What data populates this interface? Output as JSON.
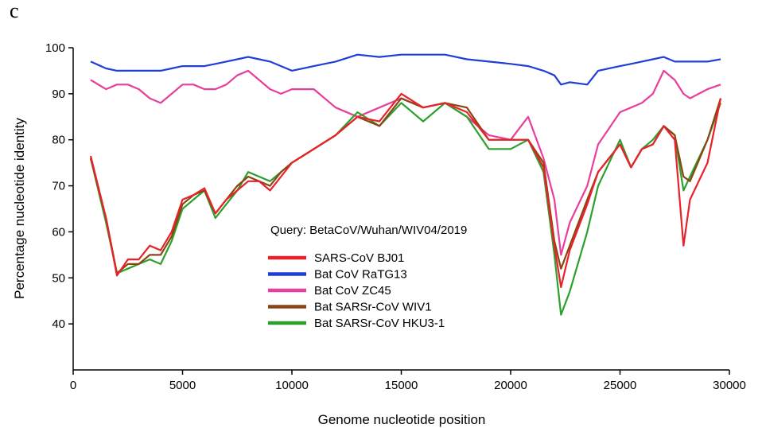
{
  "panel_label": "c",
  "chart_data": {
    "type": "line",
    "annotation": "Query: BetaCoV/Wuhan/WIV04/2019",
    "x_label": "Genome nucleotide position",
    "y_label": "Percentage nucleotide identity",
    "xlim": [
      0,
      30000
    ],
    "xticks": [
      0,
      5000,
      10000,
      15000,
      20000,
      25000,
      30000
    ],
    "ylim": [
      30,
      100
    ],
    "yticks": [
      40,
      50,
      60,
      70,
      80,
      90,
      100
    ],
    "x": [
      800,
      1500,
      2000,
      2500,
      3000,
      3500,
      4000,
      4500,
      5000,
      5500,
      6000,
      6500,
      7000,
      7500,
      8000,
      8500,
      9000,
      9500,
      10000,
      11000,
      12000,
      13000,
      14000,
      15000,
      16000,
      17000,
      18000,
      19000,
      20000,
      20800,
      21500,
      22000,
      22300,
      22700,
      23500,
      24000,
      25000,
      25500,
      26000,
      26500,
      27000,
      27500,
      27900,
      28200,
      29000,
      29600
    ],
    "series": [
      {
        "name": "SARS-CoV BJ01",
        "color": "#e8212b",
        "values": [
          76.5,
          63,
          50.5,
          54,
          54,
          57,
          56,
          60,
          67,
          68,
          69.5,
          64,
          67,
          69,
          71,
          71,
          69,
          72,
          75,
          78,
          81,
          85,
          84,
          90,
          87,
          88,
          86,
          80,
          80,
          80,
          74,
          57,
          48,
          56,
          66,
          73,
          79,
          74,
          78,
          79,
          83,
          80,
          57,
          67,
          75,
          89
        ]
      },
      {
        "name": "Bat CoV RaTG13",
        "color": "#1f3fd6",
        "values": [
          97,
          95.5,
          95,
          95,
          95,
          95,
          95,
          95.5,
          96,
          96,
          96,
          96.5,
          97,
          97.5,
          98,
          97.5,
          97,
          96,
          95,
          96,
          97,
          98.5,
          98,
          98.5,
          98.5,
          98.5,
          97.5,
          97,
          96.5,
          96,
          95,
          94,
          92,
          92.5,
          92,
          95,
          96,
          96.5,
          97,
          97.5,
          98,
          97,
          97,
          97,
          97,
          97.5
        ]
      },
      {
        "name": "Bat CoV ZC45",
        "color": "#e83e9c",
        "values": [
          93,
          91,
          92,
          92,
          91,
          89,
          88,
          90,
          92,
          92,
          91,
          91,
          92,
          94,
          95,
          93,
          91,
          90,
          91,
          91,
          87,
          85,
          87,
          89,
          87,
          88,
          85,
          81,
          80,
          85,
          76,
          67,
          55,
          62,
          70,
          79,
          86,
          87,
          88,
          90,
          95,
          93,
          90,
          89,
          91,
          92
        ]
      },
      {
        "name": "Bat SARSr-CoV WIV1",
        "color": "#8b4513",
        "values": [
          76,
          63,
          51,
          53,
          53,
          55,
          55,
          59,
          66,
          68,
          69,
          64,
          67,
          70,
          72,
          71,
          70,
          73,
          75,
          78,
          81,
          85,
          83,
          89,
          87,
          88,
          87,
          80,
          80,
          80,
          75,
          58,
          52,
          57,
          67,
          73,
          79,
          74,
          78,
          79,
          83,
          81,
          72,
          71,
          80,
          89
        ]
      },
      {
        "name": "Bat SARSr-CoV HKU3-1",
        "color": "#2ca02c",
        "values": [
          76,
          62,
          51,
          52,
          53,
          54,
          53,
          58,
          65,
          67,
          69,
          63,
          66,
          69,
          73,
          72,
          71,
          73,
          75,
          78,
          81,
          86,
          83,
          88,
          84,
          88,
          85,
          78,
          78,
          80,
          73,
          55,
          42,
          47,
          60,
          70,
          80,
          74,
          78,
          80,
          83,
          81,
          69,
          72,
          80,
          88
        ]
      }
    ]
  }
}
